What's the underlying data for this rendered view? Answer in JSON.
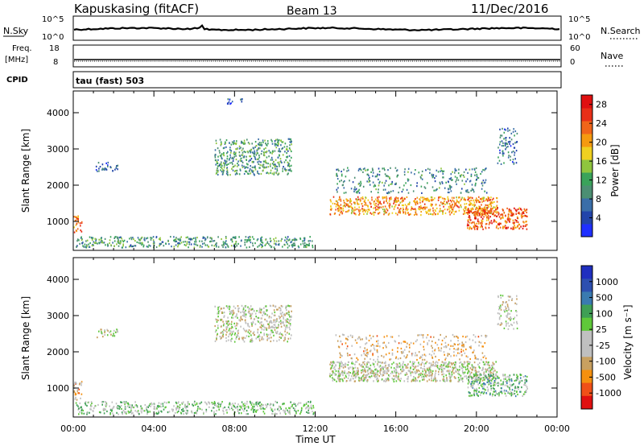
{
  "header": {
    "title": "Kapuskasing (fitACF)",
    "beam": "Beam 13",
    "date": "11/Dec/2016"
  },
  "top_panels": {
    "nsky_label": "N.Sky",
    "nsky_ticks": [
      "10^5",
      "10^0"
    ],
    "nsearch_label": "N.Search",
    "nsearch_ticks": [
      "10^5",
      "10^0"
    ],
    "freq_label": "Freq.",
    "freq_unit": "[MHz]",
    "freq_ticks": [
      "18",
      "8"
    ],
    "nave_label": "Nave",
    "nave_ticks": [
      "60",
      "0"
    ],
    "cpid_label": "CPID",
    "cpid_value": "tau (fast) 503"
  },
  "colors": {
    "power": [
      "#1f2fff",
      "#2244aa",
      "#3a6ea8",
      "#4c8f73",
      "#3aa35a",
      "#8fc53e",
      "#f0d020",
      "#f59a10",
      "#f0651a",
      "#e83018",
      "#e01010"
    ],
    "velocity": [
      "#e01010",
      "#f05018",
      "#f5900f",
      "#c8a060",
      "#bfbfbf",
      "#c0c0c0",
      "#5fc83a",
      "#3f9f55",
      "#3a7ab0",
      "#2d4fb0",
      "#1f2fbf"
    ],
    "gray_scatter": "#bdbdb4"
  },
  "chart_data": [
    {
      "type": "heatmap",
      "name": "power",
      "ylabel": "Slant Range [km]",
      "xlabel": "",
      "x_ticks": [
        "00:00",
        "04:00",
        "08:00",
        "12:00",
        "16:00",
        "20:00",
        "00:00"
      ],
      "y_ticks": [
        1000,
        2000,
        3000,
        4000
      ],
      "ylim": [
        200,
        4600
      ],
      "xlim": [
        0,
        24
      ],
      "colorbar_label": "Power [dB]",
      "colorbar_ticks": [
        4,
        8,
        12,
        16,
        20,
        24,
        28
      ],
      "colorbar_range": [
        0,
        30
      ],
      "echo_regions": [
        {
          "t0": 0.1,
          "t1": 11.9,
          "r0": 300,
          "r1": 600,
          "level": 0.35,
          "density": 0.55
        },
        {
          "t0": 7.0,
          "t1": 10.8,
          "r0": 2300,
          "r1": 3300,
          "level": 0.35,
          "density": 0.55
        },
        {
          "t0": 1.1,
          "t1": 2.2,
          "r0": 2400,
          "r1": 2650,
          "level": 0.2,
          "density": 0.5
        },
        {
          "t0": 7.6,
          "t1": 8.4,
          "r0": 4250,
          "r1": 4400,
          "level": 0.2,
          "density": 0.5
        },
        {
          "t0": 12.7,
          "t1": 21.0,
          "r0": 1200,
          "r1": 1700,
          "level": 0.7,
          "density": 0.7
        },
        {
          "t0": 13.0,
          "t1": 20.5,
          "r0": 1800,
          "r1": 2500,
          "level": 0.3,
          "density": 0.25
        },
        {
          "t0": 19.5,
          "t1": 22.5,
          "r0": 800,
          "r1": 1400,
          "level": 0.8,
          "density": 0.75
        },
        {
          "t0": 21.0,
          "t1": 22.0,
          "r0": 2600,
          "r1": 3600,
          "level": 0.25,
          "density": 0.35
        },
        {
          "t0": 0.0,
          "t1": 0.4,
          "r0": 700,
          "r1": 1200,
          "level": 0.75,
          "density": 0.6
        }
      ]
    },
    {
      "type": "heatmap",
      "name": "velocity",
      "ylabel": "Slant Range [km]",
      "xlabel": "Time UT",
      "x_ticks": [
        "00:00",
        "04:00",
        "08:00",
        "12:00",
        "16:00",
        "20:00",
        "00:00"
      ],
      "y_ticks": [
        1000,
        2000,
        3000,
        4000
      ],
      "ylim": [
        200,
        4600
      ],
      "xlim": [
        0,
        24
      ],
      "colorbar_label": "Velocity [m s⁻¹]",
      "colorbar_ticks": [
        "1000",
        "500",
        "100",
        "25",
        "-25",
        "-100",
        "-500",
        "-1000"
      ],
      "echo_regions": [
        {
          "t0": 0.1,
          "t1": 11.9,
          "r0": 300,
          "r1": 650,
          "level": 0.55,
          "density": 0.55
        },
        {
          "t0": 7.0,
          "t1": 10.8,
          "r0": 2300,
          "r1": 3300,
          "level": 0.45,
          "density": 0.55
        },
        {
          "t0": 1.1,
          "t1": 2.2,
          "r0": 2400,
          "r1": 2650,
          "level": 0.45,
          "density": 0.5
        },
        {
          "t0": 12.7,
          "t1": 21.0,
          "r0": 1200,
          "r1": 1750,
          "level": 0.45,
          "density": 0.85
        },
        {
          "t0": 13.0,
          "t1": 20.5,
          "r0": 1800,
          "r1": 2500,
          "level": 0.35,
          "density": 0.25
        },
        {
          "t0": 19.5,
          "t1": 22.5,
          "r0": 800,
          "r1": 1400,
          "level": 0.6,
          "density": 0.7
        },
        {
          "t0": 21.0,
          "t1": 22.0,
          "r0": 2600,
          "r1": 3600,
          "level": 0.45,
          "density": 0.35
        },
        {
          "t0": 0.0,
          "t1": 0.4,
          "r0": 700,
          "r1": 1200,
          "level": 0.3,
          "density": 0.6
        }
      ]
    }
  ]
}
